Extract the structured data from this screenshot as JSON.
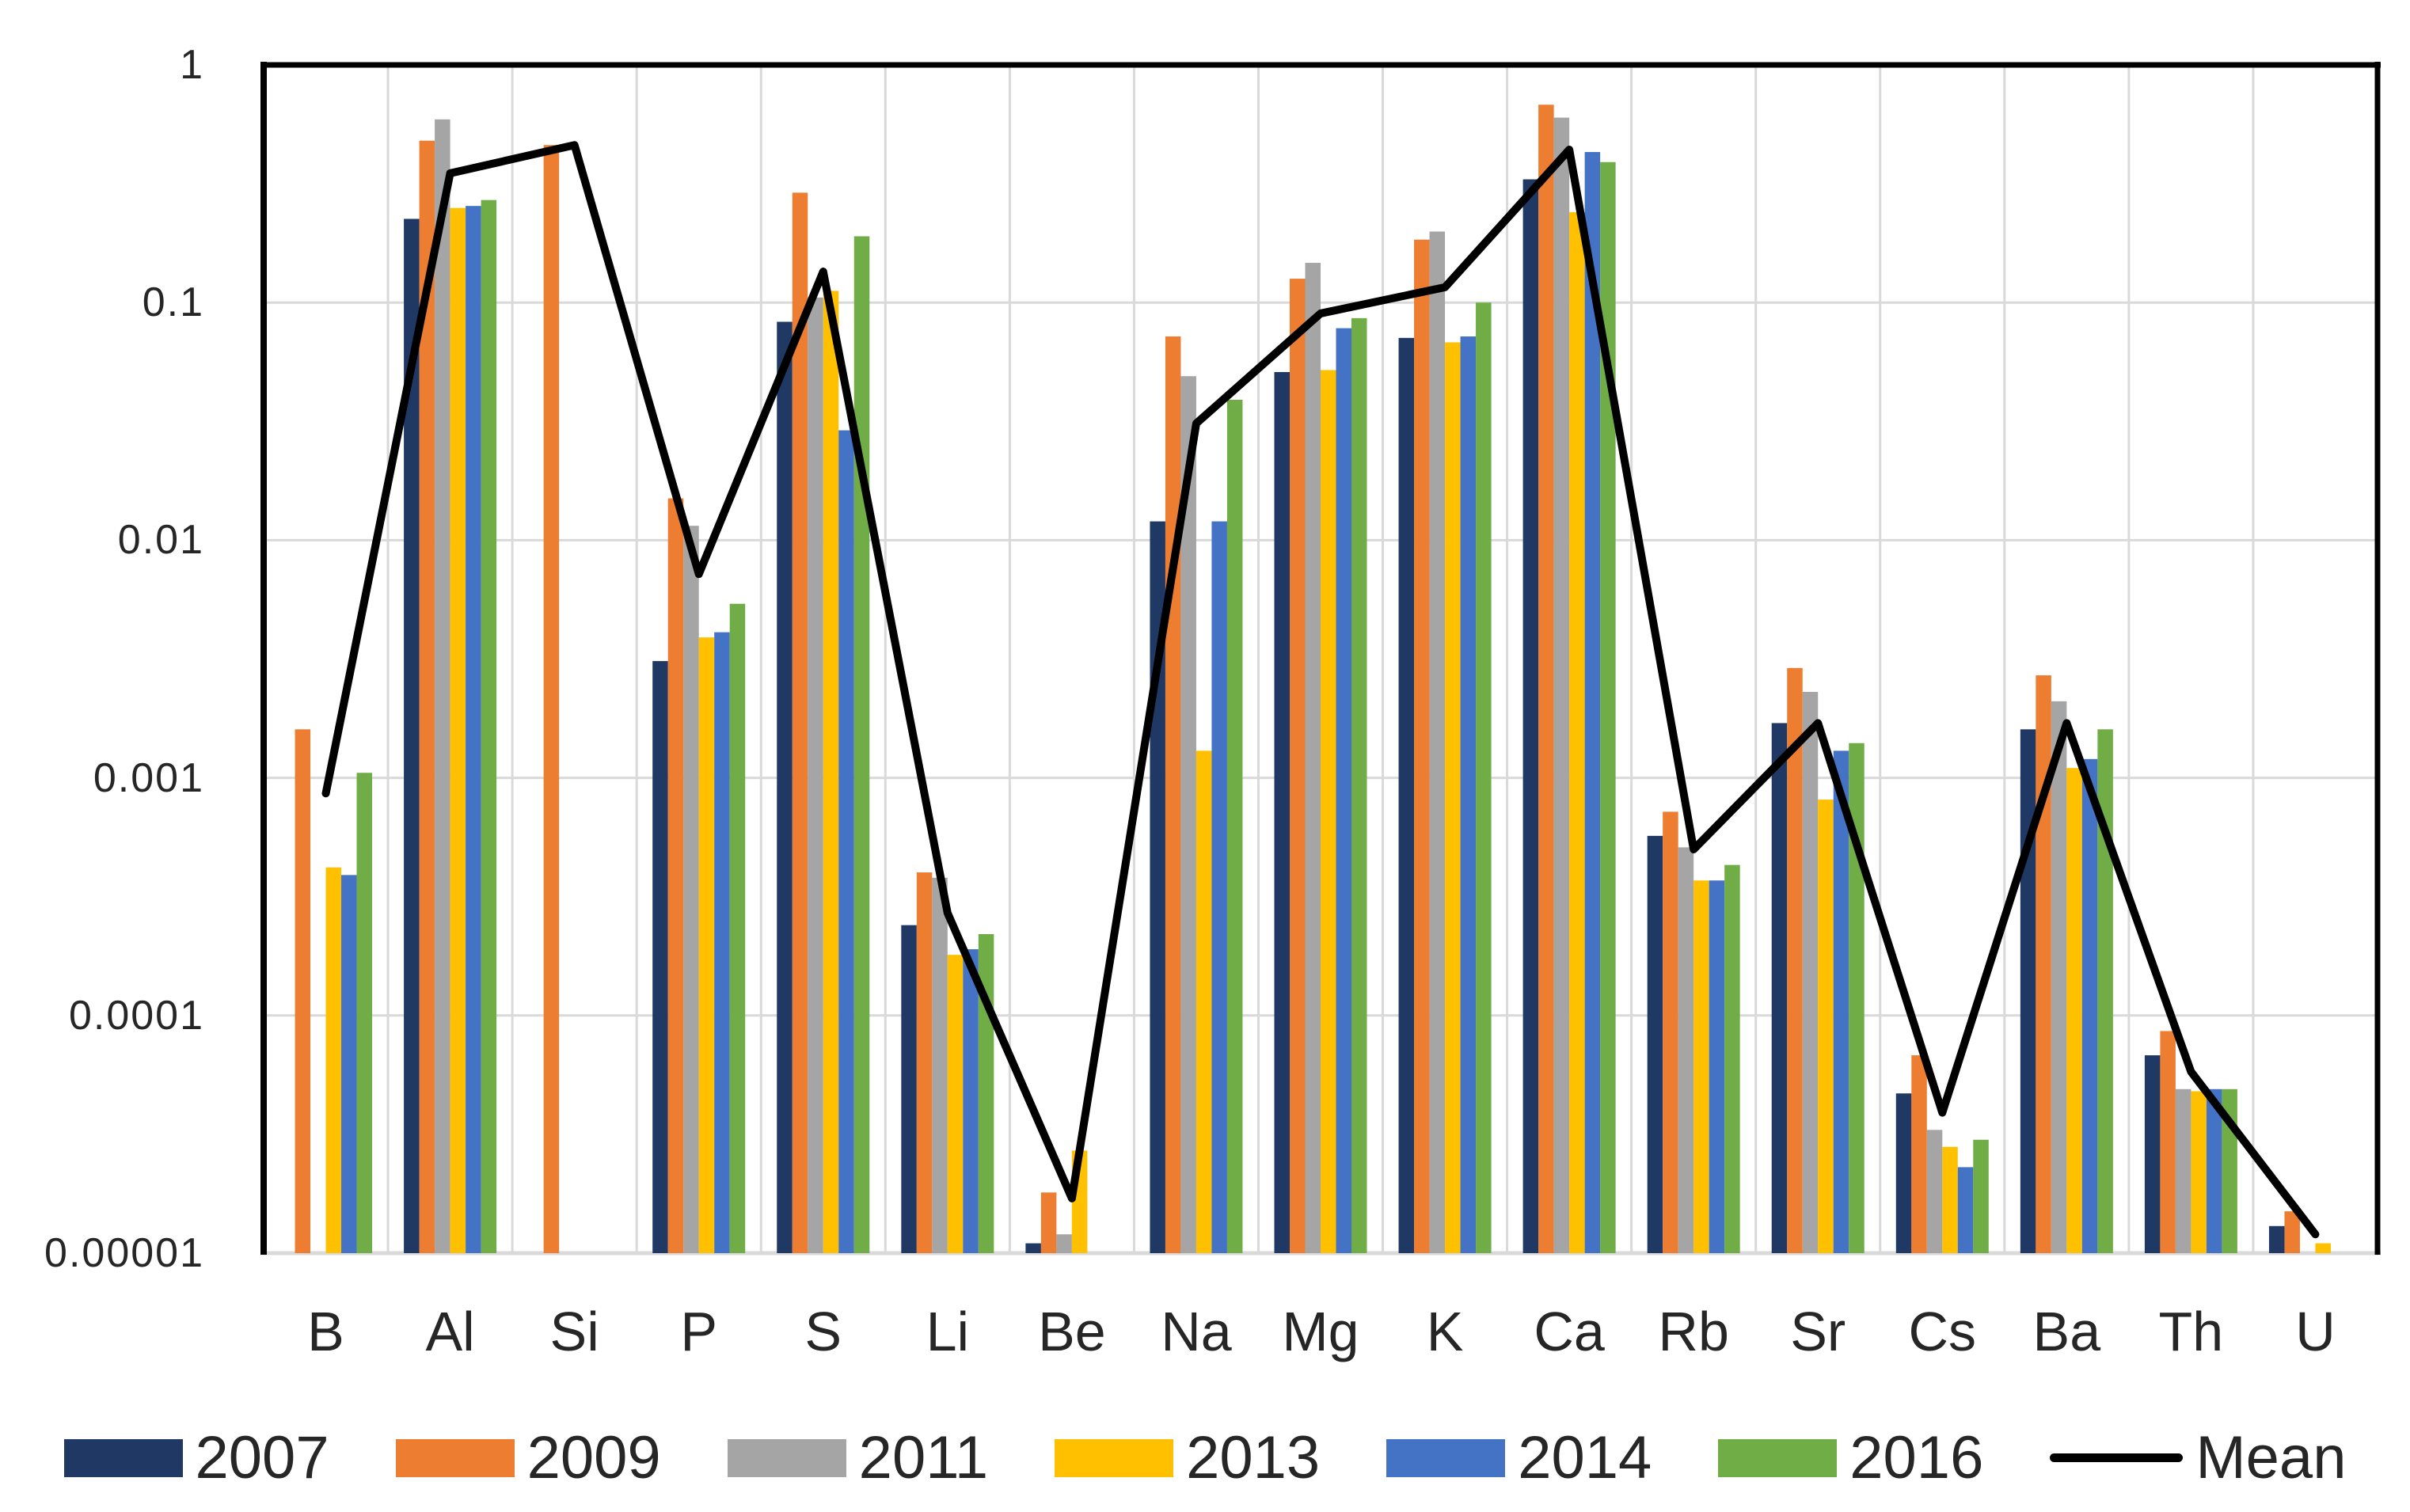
{
  "chart_data": {
    "type": "bar",
    "title": "",
    "xlabel": "",
    "ylabel": "",
    "y_scale": "log",
    "ylim": [
      1e-05,
      1
    ],
    "grid": true,
    "legend_position": "bottom",
    "y_ticks": [
      "1",
      "0.1",
      "0.01",
      "0.001",
      "0.0001",
      "0.00001"
    ],
    "y_tick_values": [
      1,
      0.1,
      0.01,
      0.001,
      0.0001,
      1e-05
    ],
    "categories": [
      "B",
      "Al",
      "Si",
      "P",
      "S",
      "Li",
      "Be",
      "Na",
      "Mg",
      "K",
      "Ca",
      "Rb",
      "Sr",
      "Cs",
      "Ba",
      "Th",
      "U"
    ],
    "series": [
      {
        "name": "2007",
        "color": "#203864",
        "values": [
          null,
          0.225,
          null,
          0.0031,
          0.083,
          0.00024,
          1.1e-05,
          0.012,
          0.051,
          0.071,
          0.33,
          0.00057,
          0.0017,
          4.7e-05,
          0.0016,
          6.8e-05,
          1.3e-05
        ]
      },
      {
        "name": "2009",
        "color": "#ED7D31",
        "values": [
          0.0016,
          0.48,
          0.46,
          0.015,
          0.29,
          0.0004,
          1.8e-05,
          0.072,
          0.126,
          0.184,
          0.68,
          0.00072,
          0.0029,
          6.8e-05,
          0.0027,
          8.6e-05,
          1.5e-05
        ]
      },
      {
        "name": "2011",
        "color": "#A5A5A5",
        "values": [
          null,
          0.59,
          null,
          0.0115,
          0.105,
          0.00038,
          1.2e-05,
          0.049,
          0.147,
          0.199,
          0.6,
          0.00051,
          0.0023,
          3.3e-05,
          0.0021,
          4.9e-05,
          null
        ]
      },
      {
        "name": "2013",
        "color": "#FFC000",
        "values": [
          0.00042,
          0.25,
          null,
          0.0039,
          0.112,
          0.00018,
          2.7e-05,
          0.0013,
          0.052,
          0.068,
          0.24,
          0.00037,
          0.00081,
          2.8e-05,
          0.0011,
          4.8e-05,
          1.1e-05
        ]
      },
      {
        "name": "2014",
        "color": "#4472C4",
        "values": [
          0.00039,
          0.255,
          null,
          0.0041,
          0.029,
          0.00019,
          null,
          0.012,
          0.078,
          0.072,
          0.43,
          0.00037,
          0.0013,
          2.3e-05,
          0.0012,
          4.9e-05,
          null
        ]
      },
      {
        "name": "2016",
        "color": "#70AD47",
        "values": [
          0.00105,
          0.27,
          null,
          0.0054,
          0.19,
          0.00022,
          null,
          0.039,
          0.086,
          0.1,
          0.39,
          0.00043,
          0.0014,
          3e-05,
          0.0016,
          4.9e-05,
          null
        ]
      }
    ],
    "mean_line": {
      "name": "Mean",
      "color": "#000000",
      "values": [
        0.00086,
        0.35,
        0.46,
        0.0072,
        0.135,
        0.00027,
        1.7e-05,
        0.031,
        0.09,
        0.116,
        0.44,
        0.0005,
        0.0017,
        3.9e-05,
        0.0017,
        5.8e-05,
        1.2e-05
      ]
    },
    "legend": [
      "2007",
      "2009",
      "2011",
      "2013",
      "2014",
      "2016",
      "Mean"
    ],
    "colors": {
      "gridline": "#D9D9D9",
      "axis_border": "#000000",
      "bottom_axis": "#D9D9D9",
      "tick_text": "#262626"
    }
  }
}
